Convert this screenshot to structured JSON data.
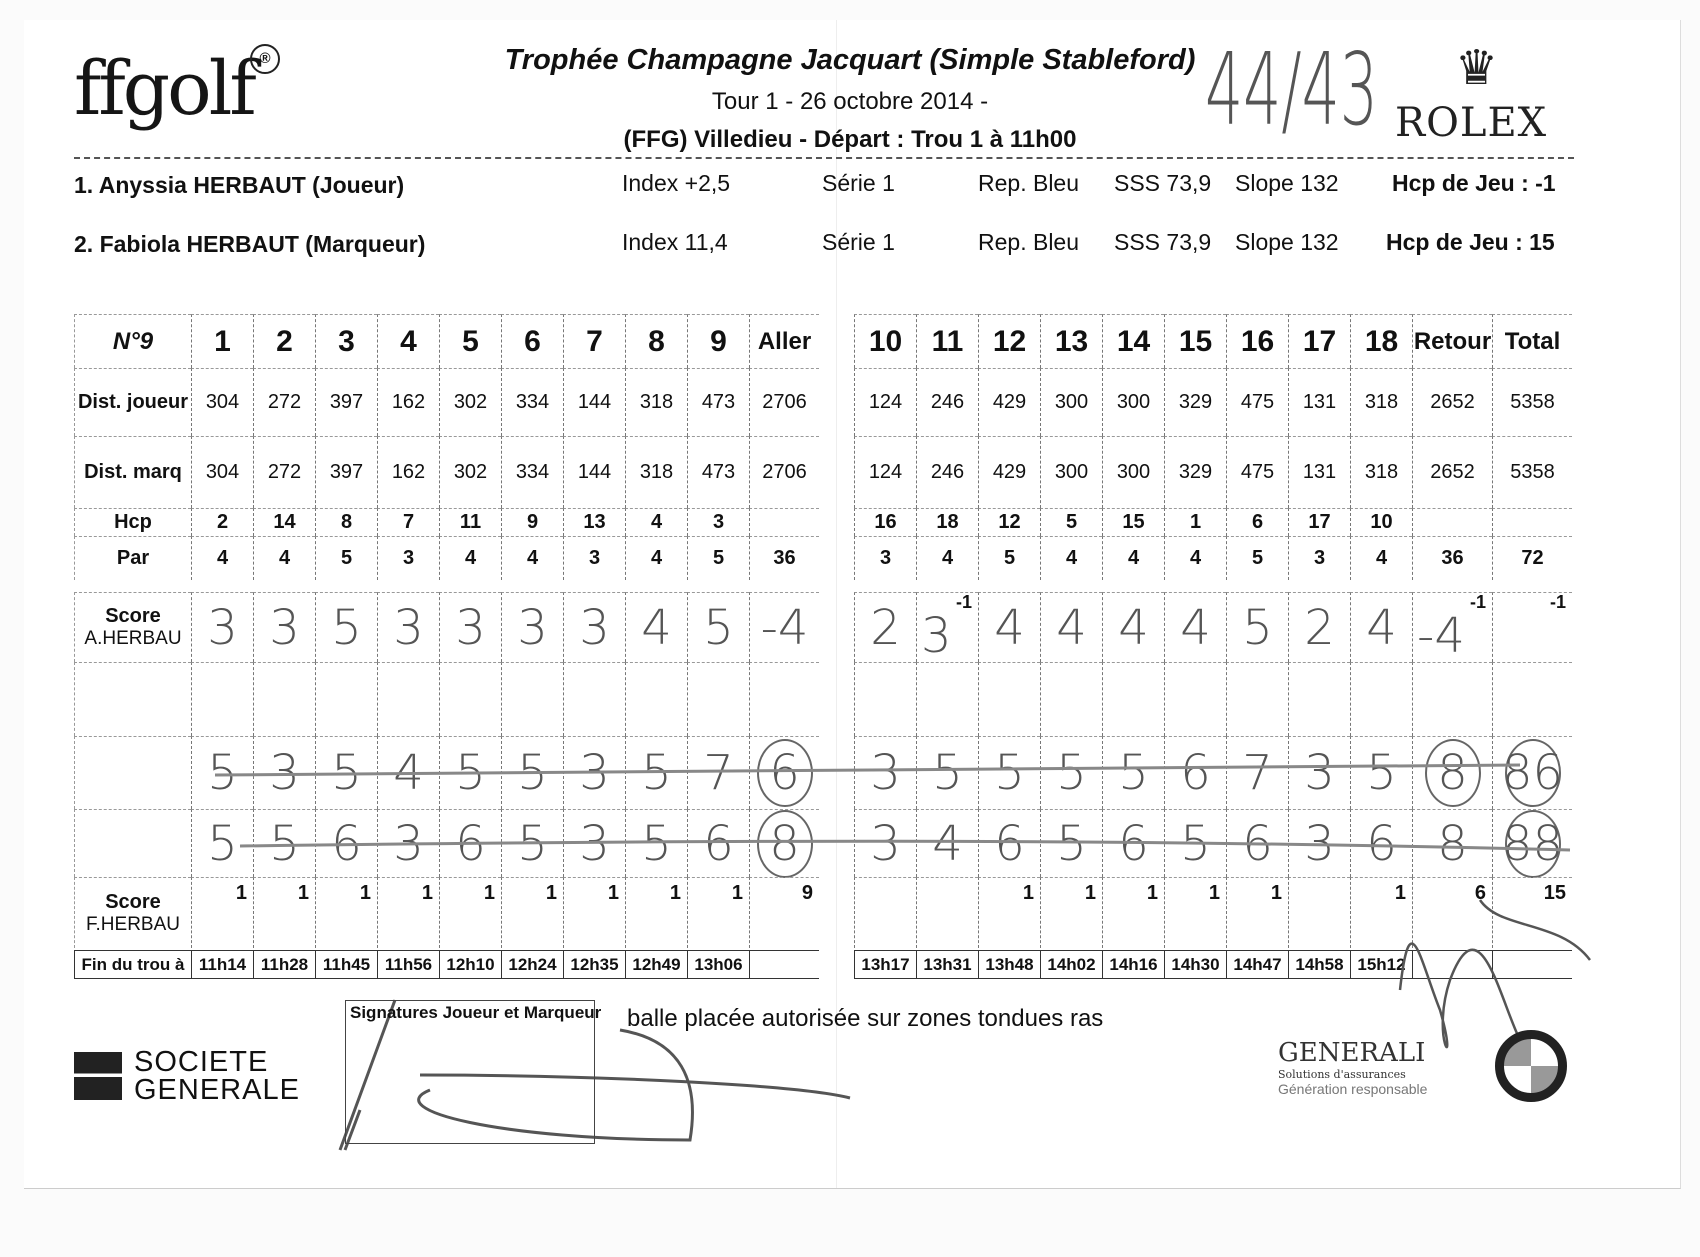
{
  "header": {
    "logo": "ffgolf",
    "logo_mark": "®",
    "title": "Trophée Champagne Jacquart (Simple Stableford)",
    "round": "Tour 1 - 26 octobre 2014 -",
    "venue": "(FFG) Villedieu - Départ : Trou 1 à 11h00",
    "handwritten_total": "44/43",
    "sponsor": "ROLEX"
  },
  "players": [
    {
      "name": "1. Anyssia HERBAUT (Joueur)",
      "index": "Index +2,5",
      "serie": "Série 1",
      "rep": "Rep. Bleu",
      "sss": "SSS 73,9",
      "slope": "Slope 132",
      "hcp": "Hcp de Jeu : -1"
    },
    {
      "name": "2. Fabiola HERBAUT (Marqueur)",
      "index": "Index 11,4",
      "serie": "Série 1",
      "rep": "Rep. Bleu",
      "sss": "SSS 73,9",
      "slope": "Slope 132",
      "hcp": "Hcp de Jeu : 15"
    }
  ],
  "labels": {
    "corner": "N°9",
    "dist_joueur": "Dist. joueur",
    "dist_marq": "Dist. marq",
    "hcp": "Hcp",
    "par": "Par",
    "score_a": "Score",
    "score_a_name": "A.HERBAU",
    "score_f": "Score",
    "score_f_name": "F.HERBAU",
    "fin": "Fin du trou à"
  },
  "front": {
    "holes": [
      "1",
      "2",
      "3",
      "4",
      "5",
      "6",
      "7",
      "8",
      "9",
      "Aller"
    ],
    "dist_joueur": [
      "304",
      "272",
      "397",
      "162",
      "302",
      "334",
      "144",
      "318",
      "473",
      "2706"
    ],
    "dist_marq": [
      "304",
      "272",
      "397",
      "162",
      "302",
      "334",
      "144",
      "318",
      "473",
      "2706"
    ],
    "hcp": [
      "2",
      "14",
      "8",
      "7",
      "11",
      "9",
      "13",
      "4",
      "3",
      ""
    ],
    "par": [
      "4",
      "4",
      "5",
      "3",
      "4",
      "4",
      "3",
      "4",
      "5",
      "36"
    ],
    "score_a": [
      "3",
      "3",
      "5",
      "3",
      "3",
      "3",
      "3",
      "4",
      "5",
      "-4"
    ],
    "score_a_marks": [
      "",
      "",
      "",
      "",
      "",
      "",
      "",
      "",
      "",
      ""
    ],
    "blank": [
      "",
      "",
      "",
      "",
      "",
      "",
      "",
      "",
      "",
      ""
    ],
    "hand_row_1": [
      "5",
      "3",
      "5",
      "4",
      "5",
      "5",
      "3",
      "5",
      "7",
      "6"
    ],
    "hand_row_2": [
      "5",
      "5",
      "6",
      "3",
      "6",
      "5",
      "3",
      "5",
      "6",
      "8"
    ],
    "score_f": [
      "1",
      "1",
      "1",
      "1",
      "1",
      "1",
      "1",
      "1",
      "1",
      "9"
    ],
    "fin": [
      "11h14",
      "11h28",
      "11h45",
      "11h56",
      "12h10",
      "12h24",
      "12h35",
      "12h49",
      "13h06",
      ""
    ]
  },
  "back": {
    "holes": [
      "10",
      "11",
      "12",
      "13",
      "14",
      "15",
      "16",
      "17",
      "18",
      "Retour",
      "Total"
    ],
    "dist_joueur": [
      "124",
      "246",
      "429",
      "300",
      "300",
      "329",
      "475",
      "131",
      "318",
      "2652",
      "5358"
    ],
    "dist_marq": [
      "124",
      "246",
      "429",
      "300",
      "300",
      "329",
      "475",
      "131",
      "318",
      "2652",
      "5358"
    ],
    "hcp": [
      "16",
      "18",
      "12",
      "5",
      "15",
      "1",
      "6",
      "17",
      "10",
      "",
      ""
    ],
    "par": [
      "3",
      "4",
      "5",
      "4",
      "4",
      "4",
      "5",
      "3",
      "4",
      "36",
      "72"
    ],
    "score_a": [
      "2",
      "3",
      "4",
      "4",
      "4",
      "4",
      "5",
      "2",
      "4",
      "-4",
      ""
    ],
    "score_a_marks": [
      "",
      "-1",
      "",
      "",
      "",
      "",
      "",
      "",
      "",
      "-1",
      "-1"
    ],
    "blank": [
      "",
      "",
      "",
      "",
      "",
      "",
      "",
      "",
      "",
      "",
      ""
    ],
    "hand_row_1": [
      "3",
      "5",
      "5",
      "5",
      "5",
      "6",
      "7",
      "3",
      "5",
      "8",
      "86"
    ],
    "hand_row_2": [
      "3",
      "4",
      "6",
      "5",
      "6",
      "5",
      "6",
      "3",
      "6",
      "8",
      "88"
    ],
    "score_f": [
      "",
      "",
      "1",
      "1",
      "1",
      "1",
      "1",
      "",
      "1",
      "6",
      "15"
    ],
    "fin": [
      "13h17",
      "13h31",
      "13h48",
      "14h02",
      "14h16",
      "14h30",
      "14h47",
      "14h58",
      "15h12",
      "",
      ""
    ]
  },
  "circled": {
    "front_hand_row_1": [
      9
    ],
    "front_hand_row_2": [
      9
    ],
    "back_hand_row_1": [
      9,
      10
    ],
    "back_hand_row_2": [
      10
    ]
  },
  "footer": {
    "signatures_label": "Signatures Joueur et Marqueur",
    "note": "balle placée autorisée sur zones tondues ras",
    "sponsor_left": "SOCIETE GENERALE",
    "sponsor_left_1": "SOCIETE",
    "sponsor_left_2": "GENERALE",
    "generali": "GENERALI",
    "generali_sub": "Solutions d'assurances",
    "generali_tag": "Génération responsable"
  }
}
